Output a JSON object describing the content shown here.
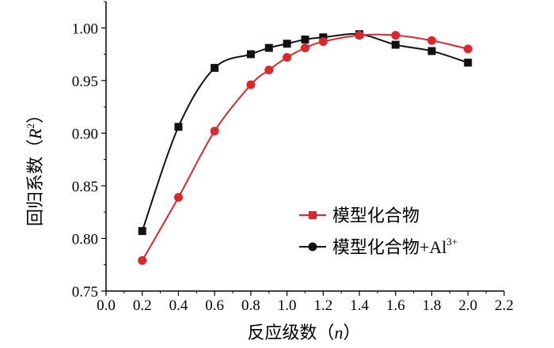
{
  "chart_data": {
    "type": "line",
    "xlabel_text": "反应级数（",
    "xlabel_var": "n",
    "xlabel_close": "）",
    "ylabel_text": "回归系数（",
    "ylabel_var": "R",
    "ylabel_sup": "2",
    "ylabel_close": "）",
    "xlim": [
      0.0,
      2.2
    ],
    "ylim": [
      0.75,
      1.025
    ],
    "x_ticks": [
      "0.0",
      "0.2",
      "0.4",
      "0.6",
      "0.8",
      "1.0",
      "1.2",
      "1.4",
      "1.6",
      "1.8",
      "2.0",
      "2.2"
    ],
    "y_ticks": [
      "0.75",
      "0.80",
      "0.85",
      "0.90",
      "0.95",
      "1.00"
    ],
    "grid": false,
    "legend_position": "lower-right",
    "series": [
      {
        "name": "模型化合物",
        "color": "#e0262a",
        "marker": "square",
        "x": [
          0.2,
          0.4,
          0.6,
          0.8,
          0.9,
          1.0,
          1.1,
          1.2,
          1.4,
          1.6,
          1.8,
          2.0
        ],
        "y": [
          0.779,
          0.839,
          0.902,
          0.946,
          0.96,
          0.972,
          0.981,
          0.987,
          0.993,
          0.993,
          0.988,
          0.98
        ]
      },
      {
        "name": "模型化合物+Al",
        "name_sup": "3+",
        "color": "#111111",
        "marker": "circle",
        "x": [
          0.2,
          0.4,
          0.6,
          0.8,
          0.9,
          1.0,
          1.1,
          1.2,
          1.4,
          1.6,
          1.8,
          2.0
        ],
        "y": [
          0.807,
          0.906,
          0.962,
          0.975,
          0.981,
          0.985,
          0.989,
          0.991,
          0.994,
          0.984,
          0.978,
          0.967
        ]
      }
    ]
  }
}
